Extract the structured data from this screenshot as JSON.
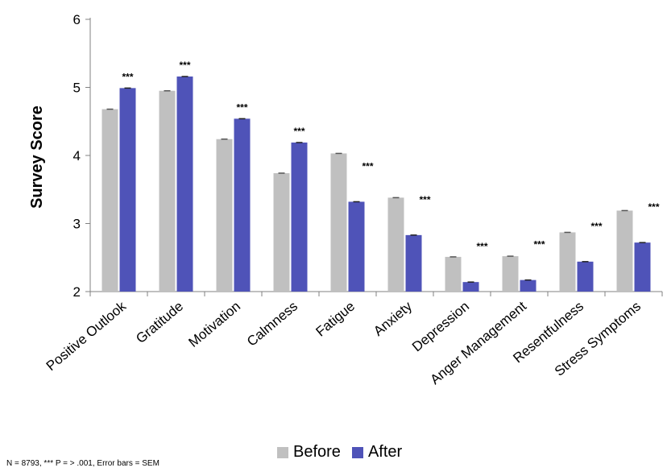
{
  "chart_data": {
    "type": "bar",
    "ylabel": "Survey Score",
    "ylim": [
      2,
      6
    ],
    "yticks": [
      2,
      3,
      4,
      5,
      6
    ],
    "categories": [
      "Positive Outlook",
      "Gratitude",
      "Motivation",
      "Calmness",
      "Fatigue",
      "Anxiety",
      "Depression",
      "Anger Management",
      "Resentfulness",
      "Stress Symptoms"
    ],
    "series": [
      {
        "name": "Before",
        "color": "#c0c0c0",
        "values": [
          4.68,
          4.95,
          4.24,
          3.74,
          4.03,
          3.38,
          2.51,
          2.52,
          2.87,
          3.19
        ]
      },
      {
        "name": "After",
        "color": "#4f53b8",
        "values": [
          4.99,
          5.16,
          4.54,
          4.19,
          3.32,
          2.83,
          2.14,
          2.17,
          2.44,
          2.72
        ]
      }
    ],
    "significance": [
      "***",
      "***",
      "***",
      "***",
      "***",
      "***",
      "***",
      "***",
      "***",
      "***"
    ],
    "footnote": "N = 8793, *** P = > .001, Error bars = SEM",
    "legend": {
      "placement": "bottom"
    }
  }
}
